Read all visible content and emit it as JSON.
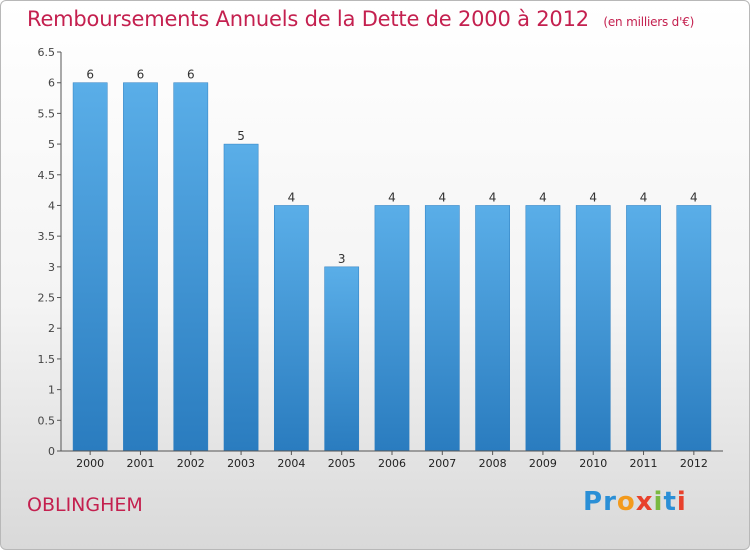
{
  "header": {
    "title": "Remboursements Annuels de la Dette de 2000 à 2012",
    "unit": "(en milliers d'€)"
  },
  "commune": "OBLINGHEM",
  "logo": {
    "text": "Proxiti",
    "letters": [
      "P",
      "r",
      "o",
      "x",
      "i",
      "t",
      "i"
    ],
    "colors": [
      "#2a8fd6",
      "#2a8fd6",
      "#f39a1c",
      "#e8412c",
      "#7ab93f",
      "#2a8fd6",
      "#e8412c"
    ]
  },
  "chart_data": {
    "type": "bar",
    "title": "Remboursements Annuels de la Dette de 2000 à 2012",
    "subtitle": "(en milliers d'€)",
    "categories": [
      "2000",
      "2001",
      "2002",
      "2003",
      "2004",
      "2005",
      "2006",
      "2007",
      "2008",
      "2009",
      "2010",
      "2011",
      "2012"
    ],
    "values": [
      6,
      6,
      6,
      5,
      4,
      3,
      4,
      4,
      4,
      4,
      4,
      4,
      4
    ],
    "data_labels": [
      "6",
      "6",
      "6",
      "5",
      "4",
      "3",
      "4",
      "4",
      "4",
      "4",
      "4",
      "4",
      "4"
    ],
    "ylim": [
      0,
      6.5
    ],
    "yticks": [
      0,
      0.5,
      1,
      1.5,
      2,
      2.5,
      3,
      3.5,
      4,
      4.5,
      5,
      5.5,
      6,
      6.5
    ],
    "ytick_labels": [
      "0",
      "0.5",
      "1",
      "1.5",
      "2",
      "2.5",
      "3",
      "3.5",
      "4",
      "4.5",
      "5",
      "5.5",
      "6",
      "6.5"
    ],
    "grid": false,
    "bar_color": "#3d96d8",
    "xlabel": "",
    "ylabel": ""
  }
}
